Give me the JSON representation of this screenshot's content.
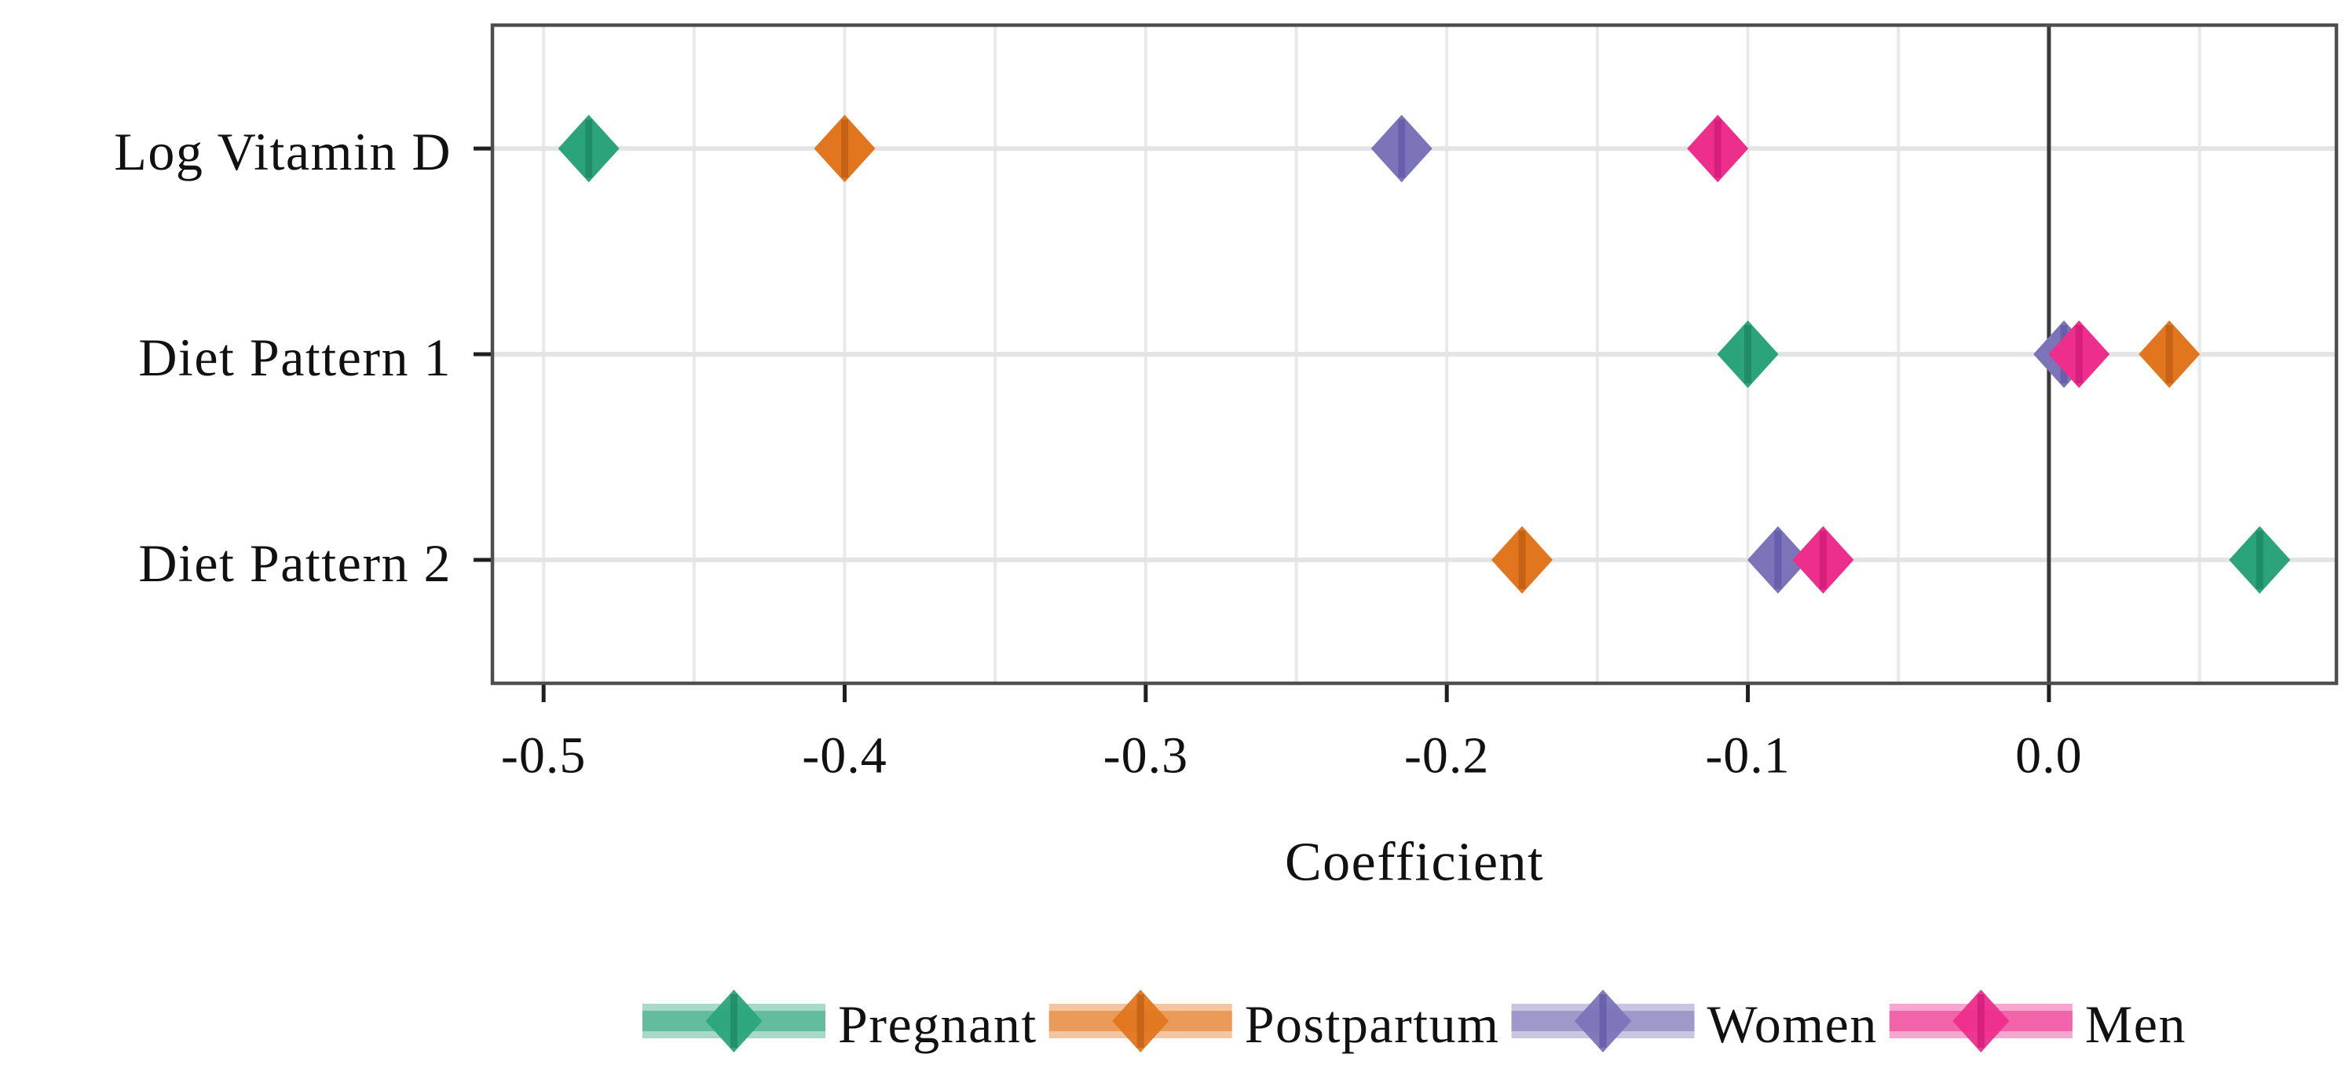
{
  "figure": {
    "background": "#ffffff"
  },
  "chart_data": {
    "type": "scatter",
    "subtype": "horizontal_coefficient_dot_plot",
    "marker": "diamond",
    "title": "",
    "xlabel": "Coefficient",
    "ylabel": "",
    "categories": [
      "Log Vitamin D",
      "Diet Pattern 1",
      "Diet Pattern 2"
    ],
    "series": [
      {
        "name": "Pregnant",
        "color": "#2BA47C",
        "accent_color": "#1F8A66",
        "values": [
          -0.485,
          -0.1,
          0.07
        ]
      },
      {
        "name": "Postpartum",
        "color": "#E2761F",
        "accent_color": "#C05F15",
        "values": [
          -0.4,
          0.04,
          -0.175
        ]
      },
      {
        "name": "Women",
        "color": "#7B74B8",
        "accent_color": "#645CA8",
        "values": [
          -0.215,
          0.005,
          -0.09
        ]
      },
      {
        "name": "Men",
        "color": "#ED2E8C",
        "accent_color": "#D11C79",
        "values": [
          -0.11,
          0.01,
          -0.075
        ]
      }
    ],
    "x_ticks": [
      -0.5,
      -0.4,
      -0.3,
      -0.2,
      -0.1,
      0.0
    ],
    "x_tick_labels": [
      "-0.5",
      "-0.4",
      "-0.3",
      "-0.2",
      "-0.1",
      "0.0"
    ],
    "xlim": [
      -0.517,
      0.0955
    ],
    "x_minor_grid_interval": 0.05,
    "grid": true,
    "zero_reference_line": 0.0,
    "legend": {
      "position": "bottom",
      "entries": [
        "Pregnant",
        "Postpartum",
        "Women",
        "Men"
      ]
    },
    "style_colors": {
      "text": "#111111",
      "panel_border": "#4E4E4E",
      "grid_vertical": "#E9E9E9",
      "grid_horizontal": "#E4E4E4",
      "zero_line": "#3A3A3A",
      "tick": "#1F1F1F"
    }
  }
}
